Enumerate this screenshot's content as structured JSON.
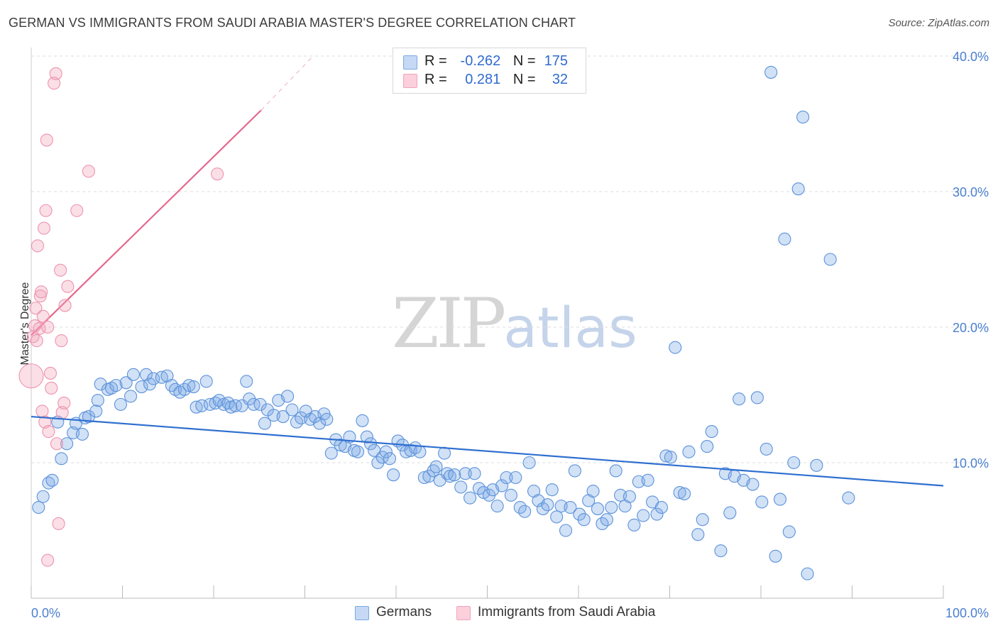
{
  "title": "GERMAN VS IMMIGRANTS FROM SAUDI ARABIA MASTER'S DEGREE CORRELATION CHART",
  "source": "Source: ZipAtlas.com",
  "watermark": {
    "zip": "ZIP",
    "atlas": "atlas"
  },
  "colors": {
    "blue": "#7aa8e6",
    "blue_line": "#2f6fd0",
    "pink": "#f1a3ba",
    "pink_line": "#e5678d",
    "tick": "#4a7fd0",
    "grid": "#dddddd"
  },
  "legend": {
    "rows": [
      {
        "r_label": "R =",
        "r_value": "-0.262",
        "n_label": "N =",
        "n_value": "175"
      },
      {
        "r_label": "R =",
        "r_value": "0.281",
        "n_label": "N =",
        "n_value": "32"
      }
    ]
  },
  "bottom_legend": {
    "germans": "Germans",
    "saudi": "Immigrants from Saudi Arabia"
  },
  "chart_data": {
    "type": "scatter",
    "title": "GERMAN VS IMMIGRANTS FROM SAUDI ARABIA MASTER'S DEGREE CORRELATION CHART",
    "xlabel": "",
    "ylabel": "Master's Degree",
    "xlim": [
      0,
      100
    ],
    "ylim": [
      0,
      40
    ],
    "x_tick_labels": [
      "0.0%",
      "100.0%"
    ],
    "y_ticks": [
      10,
      20,
      30,
      40
    ],
    "y_tick_labels": [
      "10.0%",
      "20.0%",
      "30.0%",
      "40.0%"
    ],
    "grid": "horizontal dashed",
    "legend_position": "top-center",
    "series": [
      {
        "name": "Germans",
        "color": "#7aa8e6",
        "trend": {
          "x": [
            0,
            100
          ],
          "y": [
            13.4,
            8.3
          ]
        },
        "points": [
          [
            0.8,
            6.7
          ],
          [
            1.3,
            7.5
          ],
          [
            1.9,
            8.5
          ],
          [
            2.3,
            8.7
          ],
          [
            2.9,
            13.0
          ],
          [
            3.3,
            10.3
          ],
          [
            3.9,
            11.4
          ],
          [
            4.6,
            12.2
          ],
          [
            4.9,
            12.9
          ],
          [
            5.6,
            12.1
          ],
          [
            5.9,
            13.3
          ],
          [
            6.3,
            13.4
          ],
          [
            7.1,
            13.8
          ],
          [
            7.3,
            14.6
          ],
          [
            7.6,
            15.8
          ],
          [
            8.4,
            15.4
          ],
          [
            8.8,
            15.5
          ],
          [
            9.3,
            15.7
          ],
          [
            9.8,
            14.3
          ],
          [
            10.4,
            15.9
          ],
          [
            10.9,
            14.9
          ],
          [
            11.2,
            16.5
          ],
          [
            12.1,
            15.6
          ],
          [
            12.6,
            16.5
          ],
          [
            13.0,
            15.8
          ],
          [
            13.4,
            16.2
          ],
          [
            14.3,
            16.3
          ],
          [
            14.9,
            16.4
          ],
          [
            15.4,
            15.7
          ],
          [
            15.8,
            15.4
          ],
          [
            16.3,
            15.2
          ],
          [
            16.8,
            15.4
          ],
          [
            17.3,
            15.7
          ],
          [
            17.8,
            15.6
          ],
          [
            18.1,
            14.1
          ],
          [
            18.7,
            14.2
          ],
          [
            19.2,
            16.0
          ],
          [
            19.6,
            14.3
          ],
          [
            20.2,
            14.4
          ],
          [
            20.6,
            14.6
          ],
          [
            21.1,
            14.3
          ],
          [
            21.6,
            14.4
          ],
          [
            21.9,
            14.1
          ],
          [
            22.4,
            14.2
          ],
          [
            23.1,
            14.2
          ],
          [
            23.6,
            16.0
          ],
          [
            23.9,
            14.7
          ],
          [
            24.4,
            14.3
          ],
          [
            25.1,
            14.3
          ],
          [
            25.6,
            12.9
          ],
          [
            25.9,
            13.9
          ],
          [
            26.6,
            13.5
          ],
          [
            27.1,
            14.6
          ],
          [
            27.6,
            13.4
          ],
          [
            28.1,
            14.9
          ],
          [
            28.6,
            13.9
          ],
          [
            29.1,
            13.0
          ],
          [
            29.6,
            13.3
          ],
          [
            30.1,
            13.8
          ],
          [
            30.6,
            13.2
          ],
          [
            31.1,
            13.4
          ],
          [
            31.6,
            12.9
          ],
          [
            32.1,
            13.6
          ],
          [
            32.4,
            13.2
          ],
          [
            32.9,
            10.7
          ],
          [
            33.4,
            11.7
          ],
          [
            33.9,
            11.3
          ],
          [
            34.4,
            11.2
          ],
          [
            34.9,
            11.9
          ],
          [
            35.4,
            10.9
          ],
          [
            35.8,
            10.8
          ],
          [
            36.3,
            13.1
          ],
          [
            36.8,
            11.9
          ],
          [
            37.2,
            11.4
          ],
          [
            37.6,
            10.9
          ],
          [
            38.0,
            10.0
          ],
          [
            38.5,
            10.4
          ],
          [
            38.9,
            10.8
          ],
          [
            39.3,
            10.3
          ],
          [
            39.7,
            9.1
          ],
          [
            40.2,
            11.6
          ],
          [
            40.7,
            11.3
          ],
          [
            41.1,
            10.8
          ],
          [
            41.6,
            10.9
          ],
          [
            42.1,
            11.1
          ],
          [
            42.6,
            10.8
          ],
          [
            43.1,
            8.9
          ],
          [
            43.6,
            9.0
          ],
          [
            44.1,
            9.4
          ],
          [
            44.4,
            9.7
          ],
          [
            44.8,
            8.7
          ],
          [
            45.3,
            10.7
          ],
          [
            45.6,
            9.2
          ],
          [
            45.9,
            9.0
          ],
          [
            46.4,
            9.1
          ],
          [
            47.1,
            8.2
          ],
          [
            47.6,
            9.2
          ],
          [
            48.1,
            7.4
          ],
          [
            48.6,
            9.2
          ],
          [
            49.1,
            8.1
          ],
          [
            49.6,
            7.8
          ],
          [
            50.2,
            7.6
          ],
          [
            50.6,
            8.0
          ],
          [
            51.1,
            6.8
          ],
          [
            51.6,
            8.3
          ],
          [
            52.1,
            8.9
          ],
          [
            52.6,
            7.6
          ],
          [
            53.1,
            8.9
          ],
          [
            53.6,
            6.7
          ],
          [
            54.1,
            6.4
          ],
          [
            54.6,
            10.0
          ],
          [
            55.1,
            7.9
          ],
          [
            55.6,
            7.2
          ],
          [
            56.1,
            6.6
          ],
          [
            56.6,
            6.9
          ],
          [
            57.1,
            8.0
          ],
          [
            57.6,
            6.0
          ],
          [
            58.1,
            6.8
          ],
          [
            58.6,
            5.0
          ],
          [
            59.1,
            6.7
          ],
          [
            59.6,
            9.4
          ],
          [
            60.1,
            6.2
          ],
          [
            60.6,
            5.8
          ],
          [
            61.1,
            7.2
          ],
          [
            61.6,
            7.9
          ],
          [
            62.1,
            6.6
          ],
          [
            62.6,
            5.5
          ],
          [
            63.1,
            5.8
          ],
          [
            63.6,
            6.7
          ],
          [
            64.1,
            9.4
          ],
          [
            64.6,
            7.6
          ],
          [
            65.1,
            6.8
          ],
          [
            65.6,
            7.5
          ],
          [
            66.1,
            5.4
          ],
          [
            66.6,
            8.6
          ],
          [
            67.1,
            6.1
          ],
          [
            67.6,
            8.7
          ],
          [
            68.1,
            7.1
          ],
          [
            68.6,
            6.2
          ],
          [
            69.1,
            6.7
          ],
          [
            69.6,
            10.5
          ],
          [
            70.1,
            10.4
          ],
          [
            71.1,
            7.8
          ],
          [
            71.6,
            7.7
          ],
          [
            72.1,
            10.8
          ],
          [
            73.1,
            4.7
          ],
          [
            73.6,
            5.8
          ],
          [
            74.1,
            11.2
          ],
          [
            74.6,
            12.3
          ],
          [
            75.6,
            3.5
          ],
          [
            76.1,
            9.2
          ],
          [
            76.6,
            6.3
          ],
          [
            77.1,
            9.0
          ],
          [
            77.6,
            14.7
          ],
          [
            78.1,
            8.7
          ],
          [
            79.1,
            8.4
          ],
          [
            79.6,
            14.8
          ],
          [
            80.1,
            7.1
          ],
          [
            80.6,
            11.0
          ],
          [
            81.1,
            38.8
          ],
          [
            81.6,
            3.1
          ],
          [
            82.1,
            7.3
          ],
          [
            82.6,
            26.5
          ],
          [
            83.1,
            4.9
          ],
          [
            83.6,
            10.0
          ],
          [
            84.1,
            30.2
          ],
          [
            84.6,
            35.5
          ],
          [
            85.1,
            1.8
          ],
          [
            86.1,
            9.8
          ],
          [
            87.6,
            25.0
          ],
          [
            89.6,
            7.4
          ],
          [
            70.6,
            18.5
          ]
        ]
      },
      {
        "name": "Immigrants from Saudi Arabia",
        "color": "#f1a3ba",
        "trend": {
          "x": [
            0,
            25.2
          ],
          "y": [
            19.4,
            36.0
          ],
          "dashed_to": {
            "x": 30.9,
            "y": 40.0
          }
        },
        "points": [
          [
            0.2,
            19.3
          ],
          [
            0.4,
            20.1
          ],
          [
            0.5,
            21.4
          ],
          [
            0.6,
            19.0
          ],
          [
            0.7,
            26.0
          ],
          [
            0.9,
            19.9
          ],
          [
            1.0,
            22.3
          ],
          [
            1.1,
            22.6
          ],
          [
            1.2,
            13.8
          ],
          [
            1.3,
            20.8
          ],
          [
            1.4,
            27.3
          ],
          [
            1.5,
            13.0
          ],
          [
            1.6,
            28.6
          ],
          [
            1.7,
            33.8
          ],
          [
            1.8,
            20.0
          ],
          [
            1.9,
            12.3
          ],
          [
            1.8,
            2.8
          ],
          [
            2.1,
            16.6
          ],
          [
            2.2,
            15.5
          ],
          [
            2.5,
            38.0
          ],
          [
            2.7,
            38.7
          ],
          [
            2.8,
            11.4
          ],
          [
            3.0,
            5.5
          ],
          [
            3.2,
            24.2
          ],
          [
            3.3,
            19.0
          ],
          [
            3.4,
            13.7
          ],
          [
            3.6,
            14.4
          ],
          [
            3.7,
            21.6
          ],
          [
            4.0,
            23.0
          ],
          [
            5.0,
            28.6
          ],
          [
            6.3,
            31.5
          ],
          [
            20.4,
            31.3
          ]
        ]
      }
    ]
  }
}
